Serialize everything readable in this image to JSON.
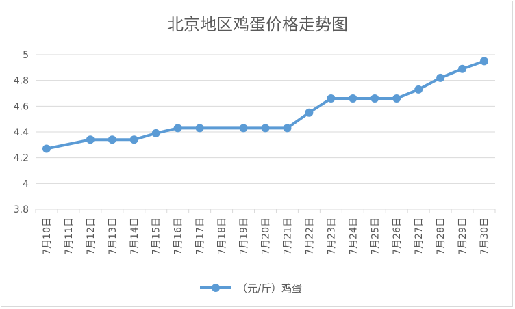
{
  "chart_data": {
    "type": "line",
    "title": "北京地区鸡蛋价格走势图",
    "categories": [
      "7月10日",
      "7月11日",
      "7月12日",
      "7月13日",
      "7月14日",
      "7月15日",
      "7月16日",
      "7月17日",
      "7月18日",
      "7月19日",
      "7月20日",
      "7月21日",
      "7月22日",
      "7月23日",
      "7月24日",
      "7月25日",
      "7月26日",
      "7月27日",
      "7月28日",
      "7月29日",
      "7月30日"
    ],
    "series": [
      {
        "name": "（元/斤）鸡蛋",
        "values": [
          4.27,
          null,
          4.34,
          4.34,
          4.34,
          4.39,
          4.43,
          4.43,
          null,
          4.43,
          4.43,
          4.43,
          4.55,
          4.66,
          4.66,
          4.66,
          4.66,
          4.73,
          4.82,
          4.89,
          4.95
        ]
      }
    ],
    "yticks": [
      "3.8",
      "4",
      "4.2",
      "4.4",
      "4.6",
      "4.8",
      "5"
    ],
    "ylim": [
      3.8,
      5.0
    ],
    "grid": true,
    "legend_position": "bottom",
    "colors": {
      "series": "#5b9bd5",
      "grid": "#d9d9d9",
      "text": "#595959"
    }
  }
}
